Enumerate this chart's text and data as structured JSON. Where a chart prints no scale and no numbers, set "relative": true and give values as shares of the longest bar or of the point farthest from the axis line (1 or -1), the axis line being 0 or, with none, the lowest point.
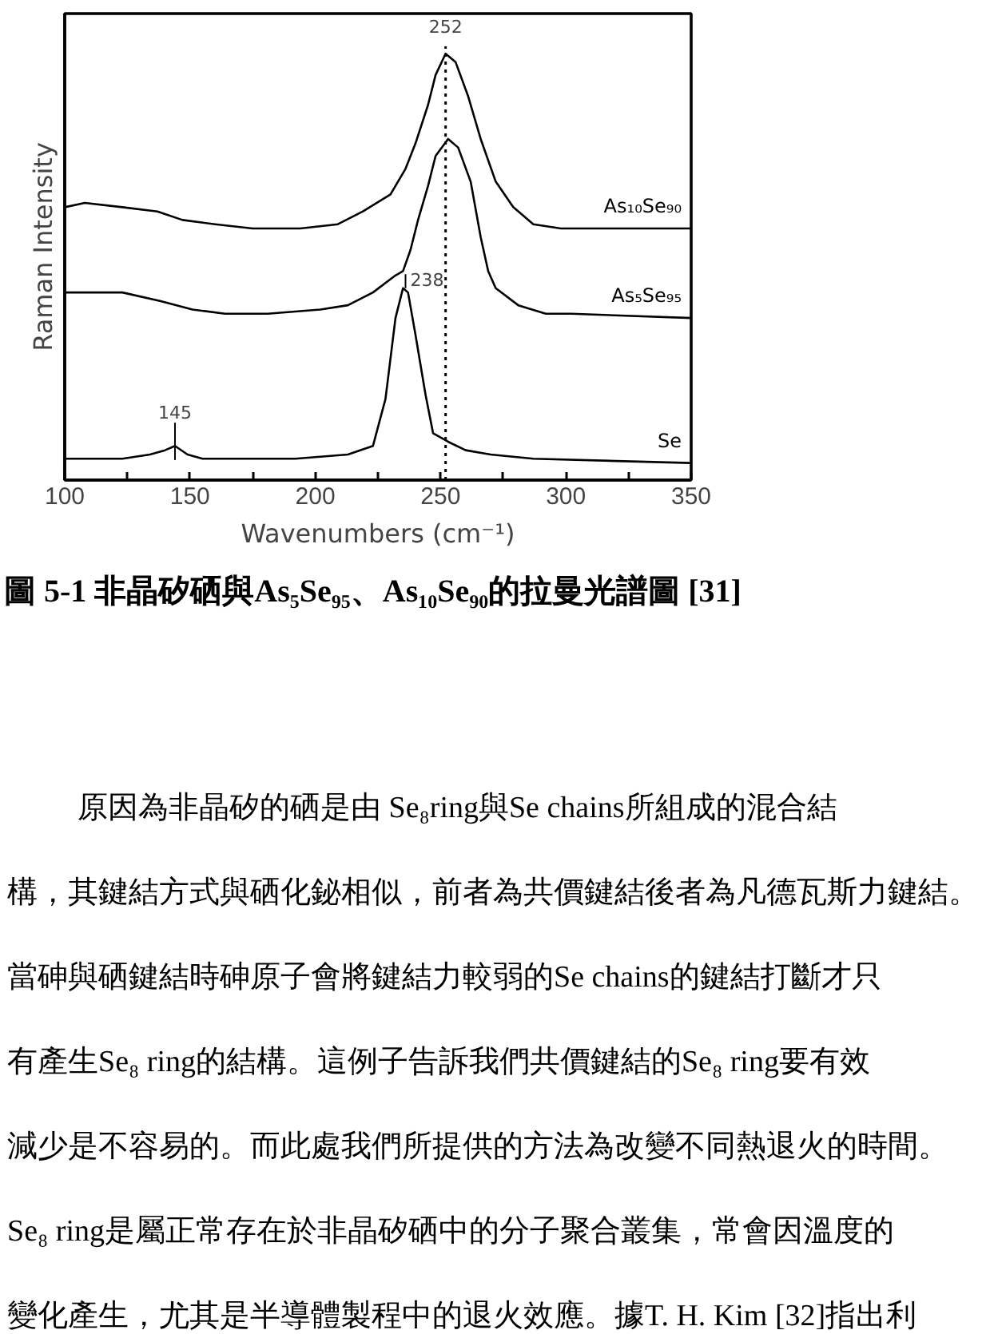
{
  "chart_data": {
    "type": "line",
    "xlabel": "Wavenumbers (cm⁻¹)",
    "ylabel": "Raman Intensity",
    "relative": true,
    "xlim": [
      100,
      350
    ],
    "xticks": [
      100,
      {
        "value": 125,
        "label": null
      },
      150,
      {
        "value": 175,
        "label": null
      },
      200,
      {
        "value": 225,
        "label": null
      },
      250,
      {
        "value": 275,
        "label": null
      },
      300,
      {
        "value": 325,
        "label": null
      },
      350
    ],
    "series": [
      {
        "name": "As₁₀Se₉₀",
        "color": "#000000",
        "x": [
          100,
          108,
          123,
          137,
          147,
          160,
          175,
          194,
          209,
          219,
          230,
          236,
          240,
          245,
          248,
          252,
          256,
          261,
          266,
          272,
          279,
          287,
          298,
          350
        ],
        "values": [
          0.64,
          0.65,
          0.64,
          0.63,
          0.61,
          0.6,
          0.59,
          0.59,
          0.6,
          0.63,
          0.67,
          0.73,
          0.79,
          0.88,
          0.95,
          1,
          0.98,
          0.9,
          0.8,
          0.7,
          0.64,
          0.6,
          0.59,
          0.59
        ]
      },
      {
        "name": "As₅Se₉₅",
        "color": "#000000",
        "x": [
          100,
          110,
          123,
          138,
          151,
          164,
          181,
          202,
          213,
          223,
          232,
          235,
          238,
          241,
          245,
          248,
          253,
          257,
          262,
          266,
          269,
          272,
          281,
          292,
          302,
          350
        ],
        "values": [
          0.44,
          0.44,
          0.44,
          0.42,
          0.4,
          0.39,
          0.39,
          0.4,
          0.41,
          0.44,
          0.48,
          0.49,
          0.54,
          0.61,
          0.69,
          0.76,
          0.8,
          0.78,
          0.7,
          0.57,
          0.49,
          0.45,
          0.41,
          0.39,
          0.39,
          0.38
        ]
      },
      {
        "name": "Se",
        "color": "#000000",
        "x": [
          100,
          111,
          123,
          134,
          140,
          144,
          149,
          155,
          170,
          192,
          213,
          223,
          228,
          232,
          235,
          237,
          240,
          244,
          247,
          253,
          260,
          270,
          287,
          350
        ],
        "values": [
          0.05,
          0.05,
          0.05,
          0.06,
          0.07,
          0.08,
          0.06,
          0.05,
          0.05,
          0.05,
          0.06,
          0.08,
          0.19,
          0.38,
          0.45,
          0.44,
          0.34,
          0.2,
          0.11,
          0.09,
          0.07,
          0.06,
          0.05,
          0.04
        ]
      }
    ],
    "ref_lines": [
      {
        "axis": "x",
        "value": 252,
        "label": "252",
        "line_style": "dotted",
        "color": "#000000"
      }
    ],
    "annotations": [
      {
        "text": "238",
        "x": 236,
        "y": 0.45
      },
      {
        "text": "145",
        "x": 144,
        "y": 0.08
      },
      "圖 5-1 非晶矽硒與As₅Se₉₅、As₁₀Se₉₀的拉曼光譜圖 [31]",
      "原因為非晶矽的硒是由 Se₈ring與Se chains所組成的混合結",
      "構，其鍵結方式與硒化鉍相似，前者為共價鍵結後者為凡德瓦斯力鍵結。",
      "當砷與硒鍵結時砷原子會將鍵結力較弱的Se chains的鍵結打斷才只",
      "有產生Se₈ ring的結構。這例子告訴我們共價鍵結的Se₈ ring要有效",
      "減少是不容易的。而此處我們所提供的方法為改變不同熱退火的時間。",
      "Se₈ ring是屬正常存在於非晶矽硒中的分子聚合叢集，常會因溫度的",
      "變化產生，尤其是半導體製程中的退火效應。據T. H. Kim [32]指出利"
    ]
  }
}
